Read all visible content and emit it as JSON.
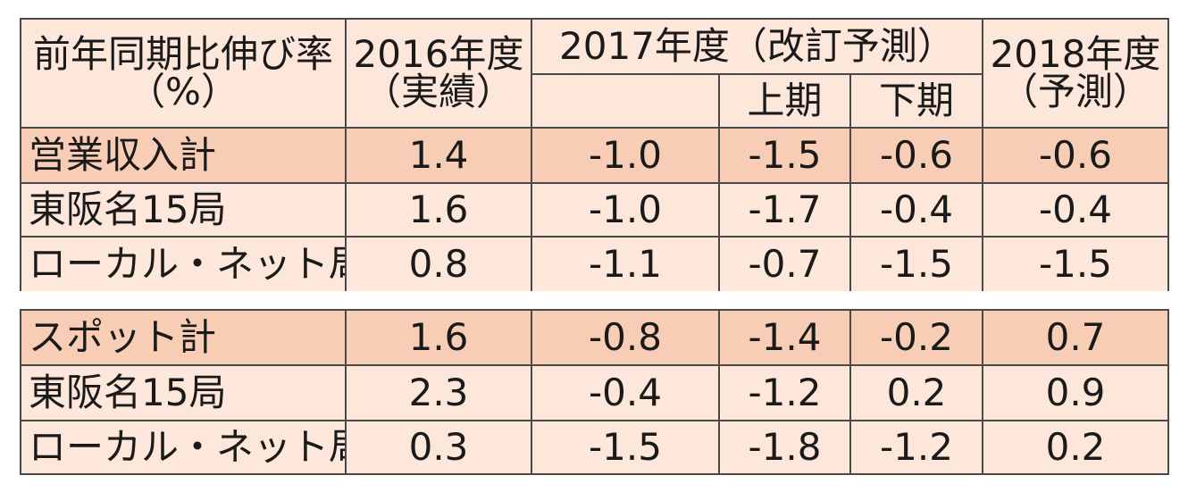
{
  "header": {
    "metric_line1": "前年同期比伸び率",
    "metric_line2": "（%）",
    "y2016_line1": "2016年度",
    "y2016_line2": "（実績）",
    "y2017": "2017年度（改訂予測）",
    "y2017_h1": "上期",
    "y2017_h2": "下期",
    "y2018_line1": "2018年度",
    "y2018_line2": "（予測）"
  },
  "groups": [
    {
      "rows": [
        {
          "label": "営業収入計",
          "v2016": "1.4",
          "v2017": "-1.0",
          "h1": "-1.5",
          "h2": "-0.6",
          "v2018": "-0.6"
        },
        {
          "label": "東阪名15局",
          "v2016": "1.6",
          "v2017": "-1.0",
          "h1": "-1.7",
          "h2": "-0.4",
          "v2018": "-0.4"
        },
        {
          "label": "ローカル・ネット局",
          "v2016": "0.8",
          "v2017": "-1.1",
          "h1": "-0.7",
          "h2": "-1.5",
          "v2018": "-1.5"
        }
      ]
    },
    {
      "rows": [
        {
          "label": "スポット計",
          "v2016": "1.6",
          "v2017": "-0.8",
          "h1": "-1.4",
          "h2": "-0.2",
          "v2018": "0.7"
        },
        {
          "label": "東阪名15局",
          "v2016": "2.3",
          "v2017": "-0.4",
          "h1": "-1.2",
          "h2": "0.2",
          "v2018": "0.9"
        },
        {
          "label": "ローカル・ネット局",
          "v2016": "0.3",
          "v2017": "-1.5",
          "h1": "-1.8",
          "h2": "-1.2",
          "v2018": "0.2"
        }
      ]
    }
  ],
  "colors": {
    "cell_bg": "#fde6da",
    "highlight_bg": "#f8cdb6",
    "border": "#4a4a4a"
  }
}
